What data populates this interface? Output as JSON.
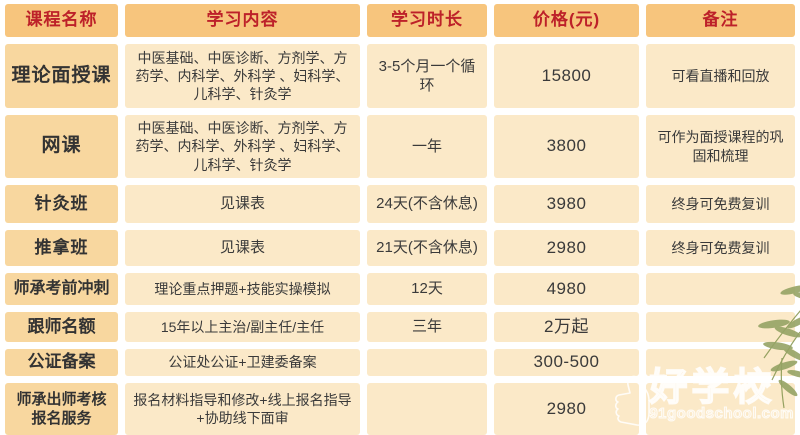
{
  "table": {
    "headers": [
      "课程名称",
      "学习内容",
      "学习时长",
      "价格(元)",
      "备注"
    ],
    "rows": [
      {
        "name": "理论面授课",
        "content": "中医基础、中医诊断、方剂学、方药学、内科学、外科学 、妇科学、儿科学、针灸学",
        "duration": "3-5个月一个循环",
        "price": "15800",
        "note": "可看直播和回放"
      },
      {
        "name": "网课",
        "content": "中医基础、中医诊断、方剂学、方药学、内科学、外科学 、妇科学、儿科学、针灸学",
        "duration": "一年",
        "price": "3800",
        "note": "可作为面授课程的巩固和梳理"
      },
      {
        "name": "针灸班",
        "content": "见课表",
        "duration": "24天(不含休息)",
        "price": "3980",
        "note": "终身可免费复训"
      },
      {
        "name": "推拿班",
        "content": "见课表",
        "duration": "21天(不含休息)",
        "price": "2980",
        "note": "终身可免费复训"
      },
      {
        "name": "师承考前冲刺",
        "content": "理论重点押题+技能实操模拟",
        "duration": "12天",
        "price": "4980",
        "note": ""
      },
      {
        "name": "跟师名额",
        "content": "15年以上主治/副主任/主任",
        "duration": "三年",
        "price": "2万起",
        "note": ""
      },
      {
        "name": "公证备案",
        "content": "公证处公证+卫建委备案",
        "duration": "",
        "price": "300-500",
        "note": ""
      },
      {
        "name": "师承出师考核报名服务",
        "content": "报名材料指导和修改+线上报名指导+协助线下面审",
        "duration": "",
        "price": "2980",
        "note": ""
      }
    ]
  },
  "watermark": {
    "brand": "好学校",
    "site": "91goodschool.com"
  },
  "colors": {
    "header_bg": "#f7c57d",
    "header_text": "#bd2129",
    "name_cell_bg": "#f8d79f",
    "data_cell_bg": "#fbe9c8",
    "body_text": "#3a3a3a",
    "bamboo_leaf": "#96a465"
  }
}
